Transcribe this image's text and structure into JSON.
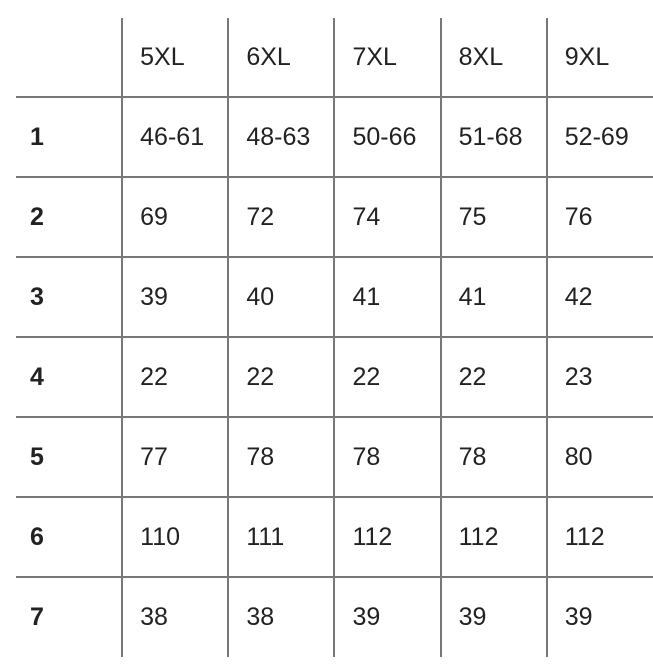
{
  "table": {
    "headers": [
      "",
      "5XL",
      "6XL",
      "7XL",
      "8XL",
      "9XL"
    ],
    "rows": [
      {
        "label": "1",
        "values": [
          "46-61",
          "48-63",
          "50-66",
          "51-68",
          "52-69"
        ]
      },
      {
        "label": "2",
        "values": [
          "69",
          "72",
          "74",
          "75",
          "76"
        ]
      },
      {
        "label": "3",
        "values": [
          "39",
          "40",
          "41",
          "41",
          "42"
        ]
      },
      {
        "label": "4",
        "values": [
          "22",
          "22",
          "22",
          "22",
          "23"
        ]
      },
      {
        "label": "5",
        "values": [
          "77",
          "78",
          "78",
          "78",
          "80"
        ]
      },
      {
        "label": "6",
        "values": [
          "110",
          "111",
          "112",
          "112",
          "112"
        ]
      },
      {
        "label": "7",
        "values": [
          "38",
          "38",
          "39",
          "39",
          "39"
        ]
      }
    ]
  },
  "colors": {
    "grid": "#777777",
    "text": "#222222"
  }
}
